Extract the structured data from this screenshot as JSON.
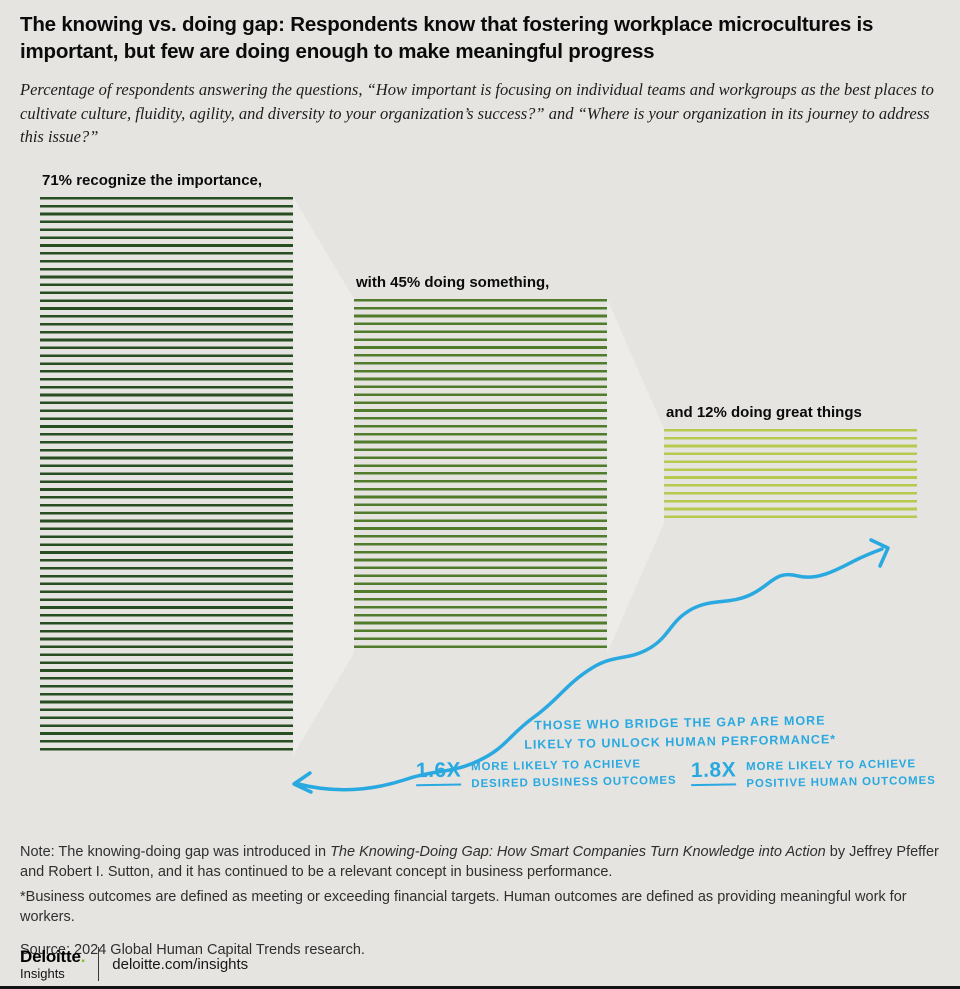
{
  "colors": {
    "background": "#e5e4e1",
    "funnel": "#edece8",
    "accent_blue": "#2aa9e0",
    "brand_green": "#86bc25"
  },
  "header": {
    "title": "The knowing vs. doing gap: Respondents know that fostering workplace microcultures is important, but few are doing enough to make meaningful progress",
    "subtitle": "Percentage of respondents answering the questions, “How important is focusing on individual teams and workgroups as the best places to cultivate culture, fluidity, agility, and diversity to your organization’s success?” and “Where is your organization in its journey to address this issue?”"
  },
  "chart_data": {
    "type": "bar",
    "categories": [
      "recognize the importance",
      "doing something",
      "doing great things"
    ],
    "values": [
      71,
      45,
      12
    ],
    "unit": "%",
    "bar_labels": [
      "71% recognize the importance,",
      "with 45% doing something,",
      "and 12% doing great things"
    ],
    "colors": [
      "#264e20",
      "#507c2c",
      "#b8c94f"
    ],
    "layout": "funnel of striped bars, vertically centered, connected by light trapezoids",
    "legend": "none",
    "annotations": {
      "bridge": [
        "THOSE WHO BRIDGE THE GAP ARE MORE",
        "LIKELY TO UNLOCK HUMAN PERFORMANCE*"
      ],
      "stats": [
        {
          "value": "1.6X",
          "lines": [
            "MORE LIKELY TO ACHIEVE",
            "DESIRED BUSINESS OUTCOMES"
          ]
        },
        {
          "value": "1.8X",
          "lines": [
            "MORE LIKELY TO ACHIEVE",
            "POSITIVE HUMAN OUTCOMES"
          ]
        }
      ]
    }
  },
  "note": {
    "prefix": "Note: The knowing-doing gap was introduced in ",
    "italic": "The Knowing-Doing Gap: How Smart Companies Turn Knowledge into Action",
    "suffix": " by Jeffrey Pfeffer and Robert I. Sutton, and it has continued to be a relevant concept in business performance.",
    "asterisk": "*Business outcomes are defined as meeting or exceeding financial targets. Human outcomes are defined as providing meaningful work for workers.",
    "source": "Source: 2024 Global Human Capital Trends research."
  },
  "footer": {
    "brand": "Deloitte",
    "brand_dot": ".",
    "brand_sub": "Insights",
    "url": "deloitte.com/insights"
  }
}
